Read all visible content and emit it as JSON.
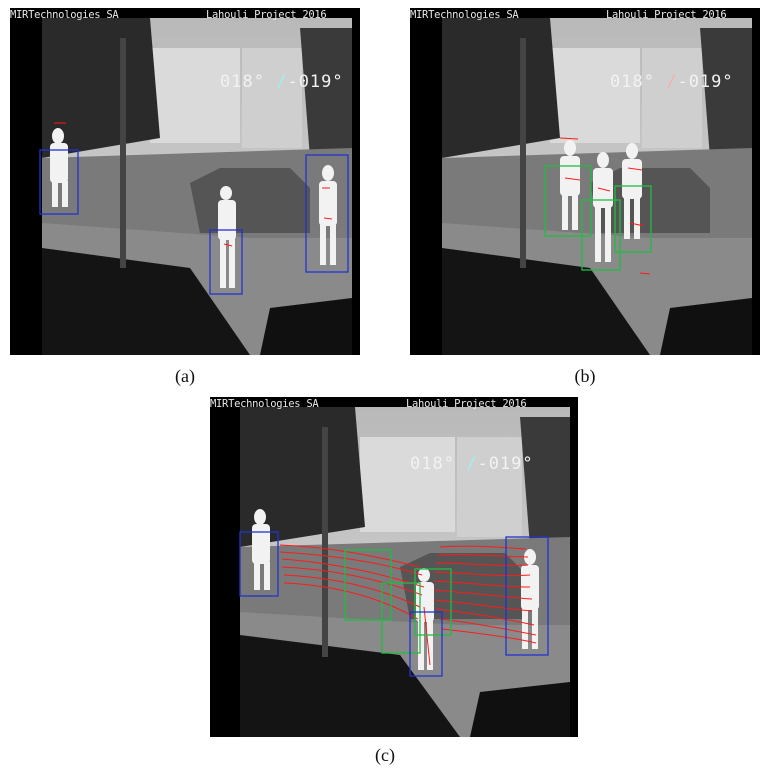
{
  "panels": [
    {
      "id": "a",
      "caption": "(a)",
      "left_text": "MIRTechnologies SA",
      "right_text": "Lahouli Project 2016",
      "angle_a": "018°",
      "angle_sep": "/",
      "angle_b": "-019°"
    },
    {
      "id": "b",
      "caption": "(b)",
      "left_text": "MIRTechnologies SA",
      "right_text": "Lahouli Project 2016",
      "angle_a": "018°",
      "angle_sep": "/",
      "angle_b": "-019°"
    },
    {
      "id": "c",
      "caption": "(c)",
      "left_text": "MIRTechnologies SA",
      "right_text": "Lahouli Project 2016",
      "angle_a": "018°",
      "angle_sep": "/",
      "angle_b": "-019°"
    }
  ],
  "colors": {
    "detection_box": "#2233cc",
    "tracked_box": "#22bb44",
    "track_line": "#ff1a1a",
    "sky": "#c8c8c8",
    "ground": "#6a6a6a",
    "dark": "#111111"
  }
}
